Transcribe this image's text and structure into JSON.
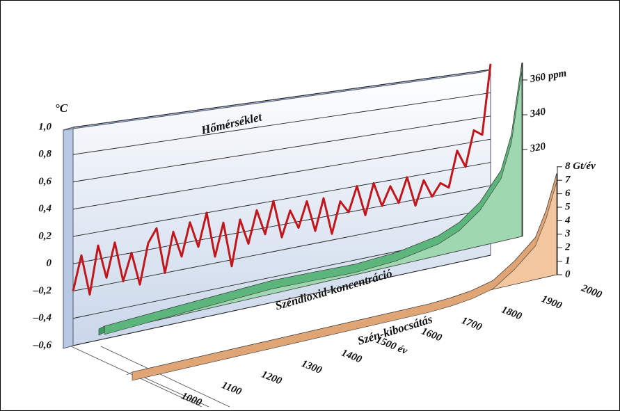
{
  "chart_data": [
    {
      "type": "line",
      "title": "Hőmérséklet",
      "y_label": "°C",
      "color": "#c0161c",
      "xlim": [
        1000,
        2000
      ],
      "x": [
        1000,
        1020,
        1040,
        1060,
        1080,
        1100,
        1120,
        1140,
        1160,
        1180,
        1200,
        1220,
        1240,
        1260,
        1280,
        1300,
        1320,
        1340,
        1360,
        1380,
        1400,
        1420,
        1440,
        1460,
        1480,
        1500,
        1520,
        1540,
        1560,
        1580,
        1600,
        1620,
        1640,
        1660,
        1680,
        1700,
        1720,
        1740,
        1760,
        1780,
        1800,
        1820,
        1840,
        1860,
        1880,
        1900,
        1920,
        1940,
        1960,
        1980,
        2000
      ],
      "values": [
        -0.2,
        0.05,
        -0.25,
        0.1,
        -0.15,
        0.1,
        -0.2,
        0.0,
        -0.25,
        0.05,
        0.15,
        -0.2,
        0.1,
        -0.1,
        0.15,
        -0.05,
        0.2,
        -0.15,
        0.1,
        -0.25,
        0.1,
        -0.1,
        0.15,
        -0.05,
        0.2,
        -0.1,
        0.1,
        -0.05,
        0.15,
        -0.1,
        0.15,
        -0.15,
        0.1,
        0.0,
        0.2,
        -0.05,
        0.2,
        0.0,
        0.15,
        0.0,
        0.2,
        -0.05,
        0.15,
        0.0,
        0.1,
        0.05,
        0.35,
        0.2,
        0.5,
        0.45,
        1.05
      ],
      "ylim": [
        -0.6,
        1.0
      ],
      "yticks": [
        {
          "value": 1.0,
          "label": "1,0"
        },
        {
          "value": 0.8,
          "label": "0,8"
        },
        {
          "value": 0.6,
          "label": "0,6"
        },
        {
          "value": 0.4,
          "label": "0,4"
        },
        {
          "value": 0.2,
          "label": "0,2"
        },
        0,
        {
          "value": -0.2,
          "label": "–0,2"
        },
        {
          "value": -0.4,
          "label": "–0,4"
        },
        {
          "value": -0.6,
          "label": "–0,6"
        }
      ],
      "grid": true,
      "xticks": [
        1000,
        {
          "value": 1100,
          "label": "1100"
        },
        1200,
        1300,
        1400,
        {
          "value": 1500,
          "label": "1500 év"
        },
        1600,
        1700,
        1800,
        1900,
        2000
      ]
    },
    {
      "type": "area",
      "title": "Széndioxid-koncentráció",
      "color": "#9fd8b0",
      "xlim": [
        1000,
        2000
      ],
      "x": [
        1000,
        1200,
        1400,
        1500,
        1600,
        1700,
        1800,
        1850,
        1900,
        1950,
        1975,
        2000
      ],
      "values": [
        279,
        281,
        282,
        280,
        278,
        279,
        283,
        288,
        297,
        312,
        331,
        370
      ],
      "ylim": [
        270,
        370
      ],
      "yticks": [
        320,
        340,
        {
          "value": 360,
          "label": "360 ppm"
        }
      ]
    },
    {
      "type": "area",
      "title": "Szén-kibocsátás",
      "color": "#f2c7a0",
      "xlim": [
        1000,
        2000
      ],
      "x": [
        1000,
        1700,
        1750,
        1800,
        1850,
        1900,
        1950,
        1975,
        2000
      ],
      "values": [
        0,
        0,
        0.1,
        0.3,
        0.7,
        1.8,
        3.2,
        5,
        7.5
      ],
      "ylim": [
        0,
        8
      ],
      "yticks": [
        0,
        1,
        2,
        3,
        4,
        5,
        6,
        7,
        {
          "value": 8,
          "label": "8 Gt/év"
        }
      ]
    }
  ]
}
